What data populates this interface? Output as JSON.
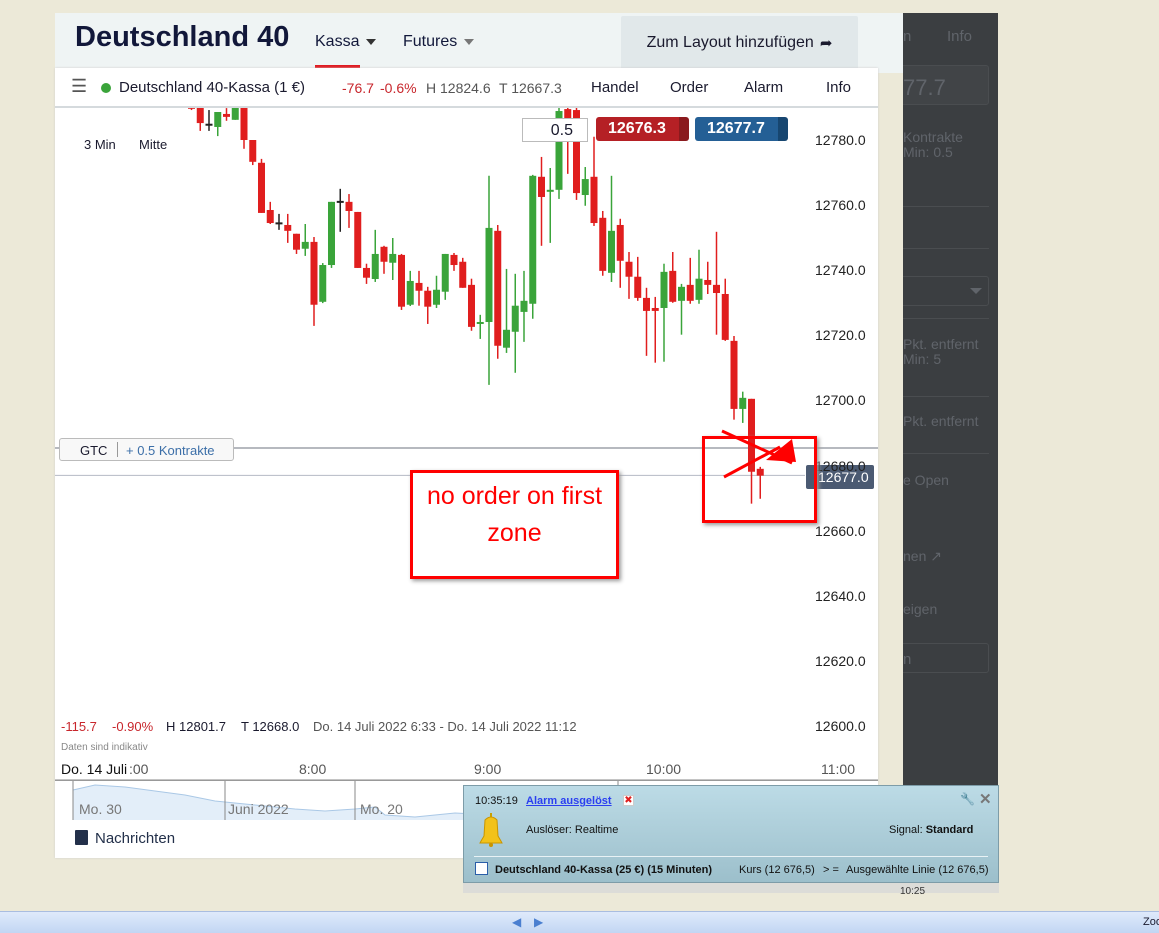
{
  "header": {
    "title": "Deutschland 40",
    "tabs": [
      {
        "label": "Kassa",
        "active": true
      },
      {
        "label": "Futures",
        "active": false
      }
    ],
    "layout_button": "Zum Layout hinzufügen",
    "accent": "#e0191f"
  },
  "instrument_bar": {
    "status_color": "#3aa43a",
    "name": "Deutschland 40-Kassa (1 €)",
    "change": "-76.7",
    "change_pct": "-0.6%",
    "high": "H 12824.6",
    "low": "T 12667.3",
    "actions": [
      "Handel",
      "Order",
      "Alarm",
      "Info"
    ]
  },
  "chart_controls": {
    "interval": "3 Min",
    "price_mode": "Mitte",
    "quantity": "0.5",
    "sell_price": "12676.3",
    "buy_price": "12677.7",
    "sell_color": "#b52025",
    "buy_color": "#245f95"
  },
  "order_line": {
    "tif": "GTC",
    "label": "+ 0.5 Kontrakte",
    "price": 12685.4
  },
  "current_price_label": "12677.0",
  "stats": {
    "change": "-115.7",
    "change_pct": "-0.90%",
    "high": "H 12801.7",
    "low": "T 12668.0",
    "range": "Do. 14 Juli 2022 6:33 - Do. 14 Juli 2022 11:12",
    "note": "Daten sind indikativ"
  },
  "annotation": {
    "text": "no order on first zone",
    "color": "#ff0000"
  },
  "chart_data": {
    "type": "candlestick",
    "interval": "3 Min",
    "yticks": [
      "12600.0",
      "12620.0",
      "12640.0",
      "12660.0",
      "12680.0",
      "12700.0",
      "12720.0",
      "12740.0",
      "12760.0",
      "12780.0"
    ],
    "ylim": [
      12600,
      12790
    ],
    "xticks": [
      "Do. 14 Juli",
      ":00",
      "8:00",
      "9:00",
      "10:00",
      "11:00"
    ],
    "up_color": "#3aa43a",
    "down_color": "#e01e1e",
    "doji_color": "#222222",
    "current_price": 12677.0,
    "candles": [
      [
        "07:18",
        12790.2,
        12790.5,
        12789.2,
        12789.8
      ],
      [
        "07:21",
        12790.2,
        12790.2,
        12782.8,
        12785.2
      ],
      [
        "07:24",
        12785.0,
        12789.2,
        12782.8,
        12784.8
      ],
      [
        "07:27",
        12784.0,
        12788.6,
        12781.2,
        12788.6
      ],
      [
        "07:30",
        12788.0,
        12789.8,
        12785.9,
        12787.1
      ],
      [
        "07:33",
        12786.2,
        12790.2,
        12786.2,
        12790.2
      ],
      [
        "07:36",
        12790.2,
        12790.2,
        12777.3,
        12780.0
      ],
      [
        "07:39",
        12780.0,
        12780.0,
        12772.3,
        12773.3
      ],
      [
        "07:42",
        12773.0,
        12774.2,
        12757.6,
        12757.6
      ],
      [
        "07:45",
        12758.5,
        12761.0,
        12754.2,
        12754.5
      ],
      [
        "07:48",
        12754.7,
        12757.3,
        12752.4,
        12754.5
      ],
      [
        "07:51",
        12753.9,
        12757.3,
        12748.4,
        12752.1
      ],
      [
        "07:54",
        12751.2,
        12751.2,
        12745.0,
        12746.3
      ],
      [
        "07:57",
        12746.6,
        12754.2,
        12744.4,
        12748.7
      ],
      [
        "08:00",
        12748.7,
        12750.2,
        12722.9,
        12729.4
      ],
      [
        "08:03",
        12730.3,
        12742.2,
        12729.9,
        12741.6
      ],
      [
        "08:06",
        12741.6,
        12761.0,
        12740.7,
        12761.0
      ],
      [
        "08:09",
        12761.3,
        12765.0,
        12751.8,
        12761.0
      ],
      [
        "08:12",
        12761.0,
        12763.4,
        12753.0,
        12758.2
      ],
      [
        "08:15",
        12757.9,
        12757.9,
        12740.7,
        12740.7
      ],
      [
        "08:18",
        12740.7,
        12742.0,
        12735.8,
        12737.7
      ],
      [
        "08:21",
        12737.3,
        12752.4,
        12736.4,
        12745.0
      ],
      [
        "08:24",
        12747.2,
        12747.5,
        12738.9,
        12742.6
      ],
      [
        "08:27",
        12742.3,
        12749.9,
        12737.0,
        12745.0
      ],
      [
        "08:30",
        12744.7,
        12745.0,
        12727.8,
        12728.8
      ],
      [
        "08:33",
        12729.4,
        12739.8,
        12729.0,
        12736.7
      ],
      [
        "08:36",
        12736.1,
        12739.8,
        12729.1,
        12733.7
      ],
      [
        "08:39",
        12733.7,
        12734.9,
        12723.5,
        12728.8
      ],
      [
        "08:42",
        12729.4,
        12738.3,
        12728.4,
        12734.0
      ],
      [
        "08:45",
        12733.4,
        12745.0,
        12730.9,
        12745.0
      ],
      [
        "08:48",
        12744.7,
        12745.3,
        12739.8,
        12741.6
      ],
      [
        "08:51",
        12742.6,
        12743.8,
        12734.6,
        12734.6
      ],
      [
        "08:54",
        12735.5,
        12737.4,
        12721.4,
        12722.6
      ],
      [
        "08:57",
        12723.5,
        12726.3,
        12718.9,
        12724.1
      ],
      [
        "09:00",
        12724.1,
        12769.0,
        12704.8,
        12753.0
      ],
      [
        "09:03",
        12752.1,
        12753.9,
        12712.8,
        12716.8
      ],
      [
        "09:06",
        12716.2,
        12740.4,
        12714.6,
        12721.7
      ],
      [
        "09:09",
        12721.1,
        12738.9,
        12708.5,
        12729.1
      ],
      [
        "09:12",
        12727.2,
        12739.8,
        12718.0,
        12730.6
      ],
      [
        "09:15",
        12729.7,
        12769.3,
        12725.1,
        12769.0
      ],
      [
        "09:18",
        12768.7,
        12774.8,
        12747.5,
        12762.5
      ],
      [
        "09:21",
        12764.1,
        12771.4,
        12748.4,
        12764.7
      ],
      [
        "09:24",
        12764.7,
        12790.2,
        12761.9,
        12788.9
      ],
      [
        "09:27",
        12789.5,
        12790.5,
        12769.6,
        12786.5
      ],
      [
        "09:30",
        12789.2,
        12790.5,
        12761.6,
        12763.7
      ],
      [
        "09:33",
        12763.1,
        12771.7,
        12759.8,
        12768.0
      ],
      [
        "09:36",
        12768.7,
        12781.0,
        12753.6,
        12754.5
      ],
      [
        "09:39",
        12756.1,
        12758.2,
        12738.3,
        12739.8
      ],
      [
        "09:42",
        12739.2,
        12769.0,
        12736.4,
        12752.1
      ],
      [
        "09:45",
        12753.9,
        12755.8,
        12734.6,
        12742.9
      ],
      [
        "09:48",
        12742.6,
        12745.6,
        12731.2,
        12738.0
      ],
      [
        "09:51",
        12738.0,
        12744.1,
        12730.6,
        12731.5
      ],
      [
        "09:54",
        12731.5,
        12734.6,
        12713.7,
        12727.5
      ],
      [
        "09:57",
        12728.4,
        12731.8,
        12711.6,
        12727.5
      ],
      [
        "10:00",
        12728.4,
        12742.0,
        12711.9,
        12739.5
      ],
      [
        "10:03",
        12739.8,
        12745.6,
        12730.0,
        12730.3
      ],
      [
        "10:06",
        12730.6,
        12735.8,
        12720.2,
        12734.9
      ],
      [
        "10:09",
        12735.5,
        12743.8,
        12729.7,
        12730.6
      ],
      [
        "10:12",
        12730.9,
        12746.3,
        12729.7,
        12737.4
      ],
      [
        "10:15",
        12737.0,
        12742.6,
        12732.7,
        12735.5
      ],
      [
        "10:18",
        12735.5,
        12751.8,
        12720.2,
        12733.0
      ],
      [
        "10:21",
        12732.7,
        12737.4,
        12718.3,
        12718.6
      ],
      [
        "10:24",
        12718.3,
        12719.8,
        12694.1,
        12697.4
      ],
      [
        "10:27",
        12697.4,
        12702.7,
        12693.1,
        12700.8
      ],
      [
        "10:30",
        12700.5,
        12700.5,
        12668.3,
        12678.1
      ],
      [
        "10:33",
        12679.0,
        12679.6,
        12669.8,
        12676.9
      ]
    ],
    "doji_black": [
      "07:24",
      "07:48",
      "08:09"
    ]
  },
  "navigator": {
    "labels": [
      "Mo. 30",
      "Juni 2022",
      "Mo. 20"
    ]
  },
  "news": {
    "label": "Nachrichten"
  },
  "side_panel": {
    "texts": [
      "n",
      "Info",
      "77.7",
      "Kontrakte",
      "Min: 0.5",
      "Pkt. entfernt",
      "Min: 5",
      "Pkt. entfernt",
      "e Open",
      "nen ↗",
      "eigen",
      "n"
    ]
  },
  "alarm": {
    "time": "10:35:19",
    "title": "Alarm ausgelöst",
    "trigger": "Auslöser: Realtime",
    "signal_label": "Signal:",
    "signal_value": "Standard",
    "instrument": "Deutschland 40-Kassa (25 €) (15 Minuten)",
    "condition_left": "Kurs (12 676,5)",
    "operator": "> =",
    "condition_right": "Ausgewählte Linie (12 676,5)",
    "behind_time": "10:25"
  },
  "taskbar": {
    "zoom_label": "Zoo"
  }
}
